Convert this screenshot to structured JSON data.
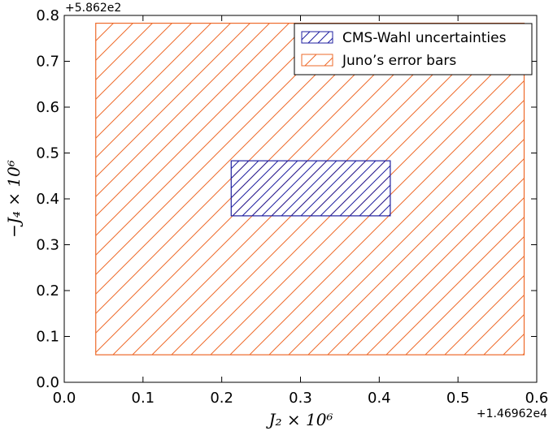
{
  "chart_data": {
    "type": "rectangle-regions",
    "xlabel": "J₂ × 10⁶",
    "ylabel": "−J₄ × 10⁶",
    "x_offset_label": "+1.46962e4",
    "y_offset_label": "+5.862e2",
    "xlim": [
      0.0,
      0.6
    ],
    "ylim": [
      0.0,
      0.8
    ],
    "xticks": [
      "0.0",
      "0.1",
      "0.2",
      "0.3",
      "0.4",
      "0.5",
      "0.6"
    ],
    "yticks": [
      "0.0",
      "0.1",
      "0.2",
      "0.3",
      "0.4",
      "0.5",
      "0.6",
      "0.7",
      "0.8"
    ],
    "grid": false,
    "legend_position": "top-right",
    "series": [
      {
        "name": "CMS-Wahl uncertainties",
        "x_range": [
          0.212,
          0.414
        ],
        "y_range": [
          0.363,
          0.483
        ],
        "color": "#1f1fa0",
        "hatch": "/"
      },
      {
        "name": "Juno’s error bars",
        "x_range": [
          0.04,
          0.584
        ],
        "y_range": [
          0.06,
          0.783
        ],
        "color": "#ee6a2a",
        "hatch": "/"
      }
    ]
  }
}
